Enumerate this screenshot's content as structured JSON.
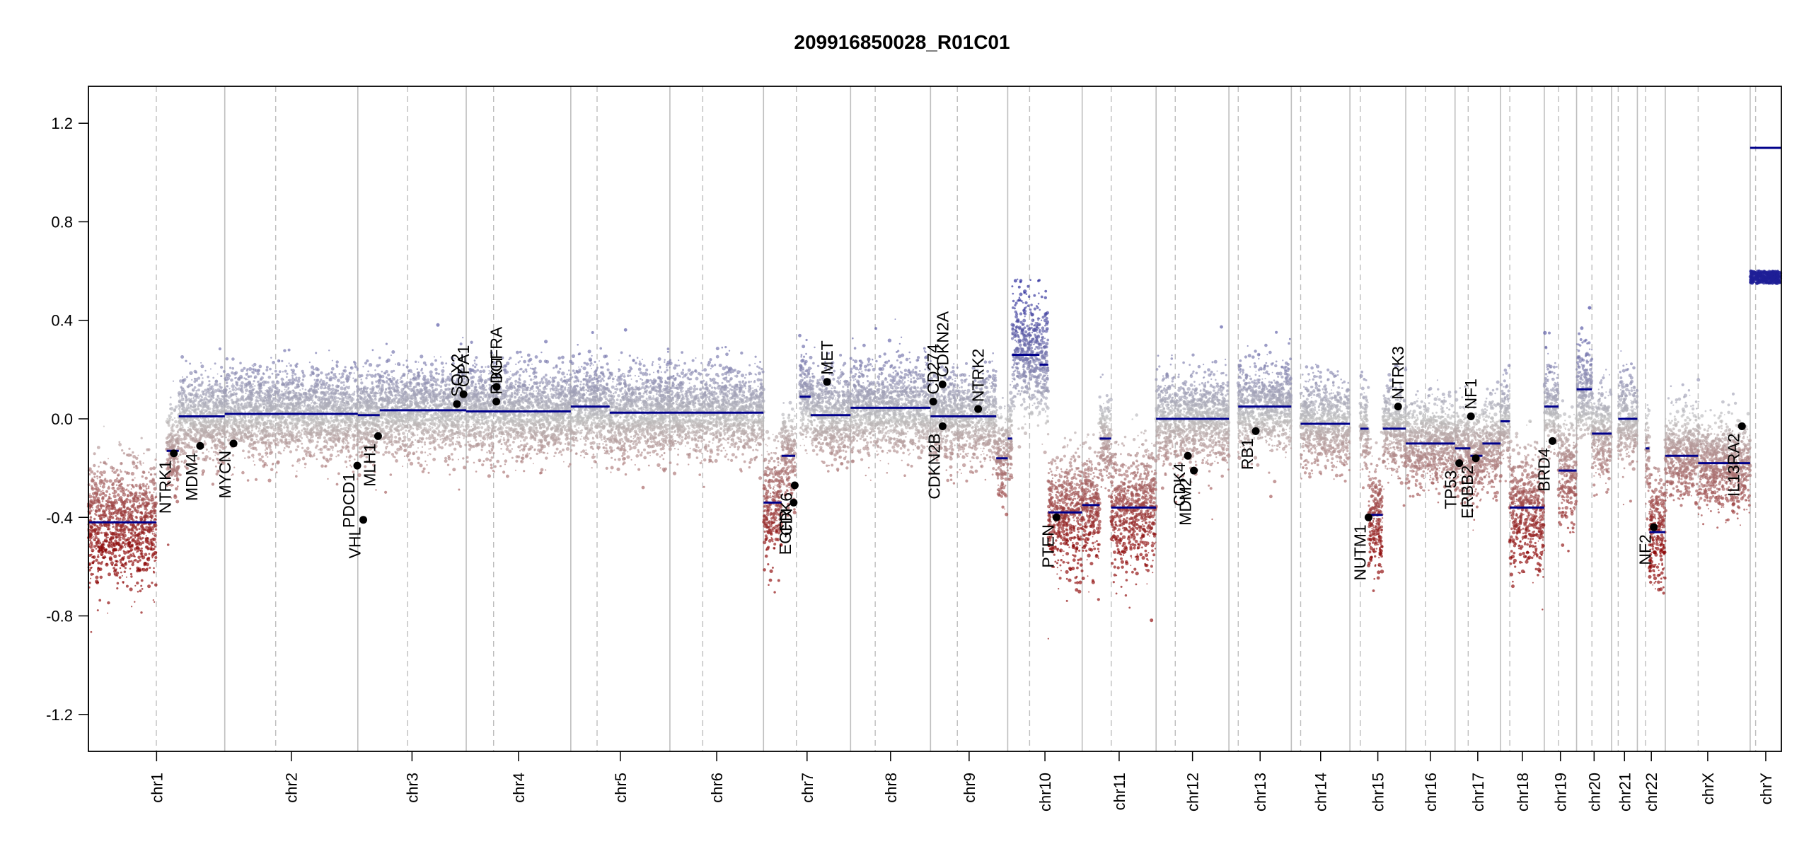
{
  "chart_data": {
    "type": "scatter",
    "title": "209916850028_R01C01",
    "xlabel": "",
    "ylabel": "",
    "ylim": [
      -1.35,
      1.35
    ],
    "yticks": [
      -1.2,
      -0.8,
      -0.4,
      0.0,
      0.4,
      0.8,
      1.2
    ],
    "ytick_labels": [
      "-1.2",
      "-0.8",
      "-0.4",
      "0.0",
      "0.4",
      "0.8",
      "1.2"
    ],
    "xaxis_unit": "Mb (cumulative genome position)",
    "chromosomes": [
      {
        "name": "chr1",
        "length": 249,
        "centromere": 124
      },
      {
        "name": "chr2",
        "length": 243,
        "centromere": 93
      },
      {
        "name": "chr3",
        "length": 198,
        "centromere": 91
      },
      {
        "name": "chr4",
        "length": 191,
        "centromere": 50
      },
      {
        "name": "chr5",
        "length": 181,
        "centromere": 48
      },
      {
        "name": "chr6",
        "length": 171,
        "centromere": 60
      },
      {
        "name": "chr7",
        "length": 159,
        "centromere": 60
      },
      {
        "name": "chr8",
        "length": 146,
        "centromere": 45
      },
      {
        "name": "chr9",
        "length": 141,
        "centromere": 49
      },
      {
        "name": "chr10",
        "length": 136,
        "centromere": 40
      },
      {
        "name": "chr11",
        "length": 135,
        "centromere": 53
      },
      {
        "name": "chr12",
        "length": 133,
        "centromere": 35
      },
      {
        "name": "chr13",
        "length": 114,
        "centromere": 17
      },
      {
        "name": "chr14",
        "length": 107,
        "centromere": 17
      },
      {
        "name": "chr15",
        "length": 102,
        "centromere": 19
      },
      {
        "name": "chr16",
        "length": 90,
        "centromere": 36
      },
      {
        "name": "chr17",
        "length": 83,
        "centromere": 24
      },
      {
        "name": "chr18",
        "length": 80,
        "centromere": 17
      },
      {
        "name": "chr19",
        "length": 59,
        "centromere": 26
      },
      {
        "name": "chr20",
        "length": 64,
        "centromere": 28
      },
      {
        "name": "chr21",
        "length": 47,
        "centromere": 12
      },
      {
        "name": "chr22",
        "length": 51,
        "centromere": 15
      },
      {
        "name": "chrX",
        "length": 155,
        "centromere": 60
      },
      {
        "name": "chrY",
        "length": 57,
        "centromere": 10
      }
    ],
    "segments": [
      {
        "chr": "chr1",
        "start": 0,
        "end": 124,
        "value": -0.42
      },
      {
        "chr": "chr1",
        "start": 143,
        "end": 165,
        "value": -0.13
      },
      {
        "chr": "chr1",
        "start": 165,
        "end": 249,
        "value": 0.01
      },
      {
        "chr": "chr2",
        "start": 0,
        "end": 243,
        "value": 0.02
      },
      {
        "chr": "chr3",
        "start": 0,
        "end": 40,
        "value": 0.015
      },
      {
        "chr": "chr3",
        "start": 40,
        "end": 198,
        "value": 0.035
      },
      {
        "chr": "chr4",
        "start": 0,
        "end": 191,
        "value": 0.03
      },
      {
        "chr": "chr5",
        "start": 0,
        "end": 71,
        "value": 0.05
      },
      {
        "chr": "chr5",
        "start": 71,
        "end": 181,
        "value": 0.025
      },
      {
        "chr": "chr6",
        "start": 0,
        "end": 171,
        "value": 0.025
      },
      {
        "chr": "chr7",
        "start": 0,
        "end": 33,
        "value": -0.34
      },
      {
        "chr": "chr7",
        "start": 33,
        "end": 58,
        "value": -0.15
      },
      {
        "chr": "chr7",
        "start": 66,
        "end": 86,
        "value": 0.09
      },
      {
        "chr": "chr7",
        "start": 86,
        "end": 159,
        "value": 0.015
      },
      {
        "chr": "chr8",
        "start": 0,
        "end": 146,
        "value": 0.045
      },
      {
        "chr": "chr9",
        "start": 0,
        "end": 120,
        "value": 0.01
      },
      {
        "chr": "chr9",
        "start": 120,
        "end": 141,
        "value": -0.16
      },
      {
        "chr": "chr10",
        "start": 0,
        "end": 8,
        "value": -0.08
      },
      {
        "chr": "chr10",
        "start": 8,
        "end": 58,
        "value": 0.26
      },
      {
        "chr": "chr10",
        "start": 58,
        "end": 74,
        "value": 0.22
      },
      {
        "chr": "chr10",
        "start": 74,
        "end": 136,
        "value": -0.38
      },
      {
        "chr": "chr11",
        "start": 0,
        "end": 32,
        "value": -0.35
      },
      {
        "chr": "chr11",
        "start": 32,
        "end": 53,
        "value": -0.08
      },
      {
        "chr": "chr11",
        "start": 53,
        "end": 135,
        "value": -0.36
      },
      {
        "chr": "chr12",
        "start": 0,
        "end": 133,
        "value": 0.0
      },
      {
        "chr": "chr13",
        "start": 17,
        "end": 114,
        "value": 0.05
      },
      {
        "chr": "chr14",
        "start": 17,
        "end": 107,
        "value": -0.02
      },
      {
        "chr": "chr15",
        "start": 19,
        "end": 34,
        "value": -0.04
      },
      {
        "chr": "chr15",
        "start": 34,
        "end": 60,
        "value": -0.39
      },
      {
        "chr": "chr15",
        "start": 60,
        "end": 102,
        "value": -0.04
      },
      {
        "chr": "chr16",
        "start": 0,
        "end": 90,
        "value": -0.1
      },
      {
        "chr": "chr17",
        "start": 0,
        "end": 28,
        "value": -0.12
      },
      {
        "chr": "chr17",
        "start": 28,
        "end": 50,
        "value": -0.15
      },
      {
        "chr": "chr17",
        "start": 50,
        "end": 83,
        "value": -0.1
      },
      {
        "chr": "chr18",
        "start": 0,
        "end": 17,
        "value": -0.01
      },
      {
        "chr": "chr18",
        "start": 17,
        "end": 80,
        "value": -0.36
      },
      {
        "chr": "chr19",
        "start": 0,
        "end": 26,
        "value": 0.05
      },
      {
        "chr": "chr19",
        "start": 26,
        "end": 59,
        "value": -0.21
      },
      {
        "chr": "chr20",
        "start": 0,
        "end": 28,
        "value": 0.12
      },
      {
        "chr": "chr20",
        "start": 28,
        "end": 64,
        "value": -0.06
      },
      {
        "chr": "chr21",
        "start": 12,
        "end": 47,
        "value": 0.0
      },
      {
        "chr": "chr22",
        "start": 15,
        "end": 22,
        "value": -0.12
      },
      {
        "chr": "chr22",
        "start": 22,
        "end": 51,
        "value": -0.46
      },
      {
        "chr": "chrX",
        "start": 0,
        "end": 60,
        "value": -0.15
      },
      {
        "chr": "chrX",
        "start": 60,
        "end": 155,
        "value": -0.18
      },
      {
        "chr": "chrY",
        "start": 0,
        "end": 57,
        "value": 1.1
      }
    ],
    "genes": [
      {
        "name": "NTRK1",
        "chr": "chr1",
        "pos": 156,
        "value": -0.14
      },
      {
        "name": "MDM4",
        "chr": "chr1",
        "pos": 204,
        "value": -0.11
      },
      {
        "name": "MYCN",
        "chr": "chr2",
        "pos": 16,
        "value": -0.1
      },
      {
        "name": "VHL",
        "chr": "chr3",
        "pos": 10,
        "value": -0.41
      },
      {
        "name": "PDCD1",
        "chr": "chr2",
        "pos": 242,
        "value": -0.19
      },
      {
        "name": "MLH1",
        "chr": "chr3",
        "pos": 37,
        "value": -0.07
      },
      {
        "name": "SOX2",
        "chr": "chr3",
        "pos": 181,
        "value": 0.06
      },
      {
        "name": "OPA1",
        "chr": "chr3",
        "pos": 193,
        "value": 0.1
      },
      {
        "name": "PDGFRA",
        "chr": "chr4",
        "pos": 55,
        "value": 0.07
      },
      {
        "name": "KIT",
        "chr": "chr4",
        "pos": 55.5,
        "value": 0.13
      },
      {
        "name": "EGFR",
        "chr": "chr7",
        "pos": 55,
        "value": -0.34
      },
      {
        "name": "CDK6",
        "chr": "chr7",
        "pos": 57,
        "value": -0.27
      },
      {
        "name": "MET",
        "chr": "chr7",
        "pos": 116,
        "value": 0.15
      },
      {
        "name": "CD274",
        "chr": "chr9",
        "pos": 5,
        "value": 0.07
      },
      {
        "name": "CDKN2A",
        "chr": "chr9",
        "pos": 21.9,
        "value": 0.14
      },
      {
        "name": "CDKN2B",
        "chr": "chr9",
        "pos": 22.1,
        "value": -0.03
      },
      {
        "name": "NTRK2",
        "chr": "chr9",
        "pos": 87,
        "value": 0.04
      },
      {
        "name": "PTEN",
        "chr": "chr10",
        "pos": 89,
        "value": -0.4
      },
      {
        "name": "CDK4",
        "chr": "chr12",
        "pos": 58,
        "value": -0.15
      },
      {
        "name": "MDM2",
        "chr": "chr12",
        "pos": 69,
        "value": -0.21
      },
      {
        "name": "RB1",
        "chr": "chr13",
        "pos": 49,
        "value": -0.05
      },
      {
        "name": "NUTM1",
        "chr": "chr15",
        "pos": 34,
        "value": -0.4
      },
      {
        "name": "NTRK3",
        "chr": "chr15",
        "pos": 88,
        "value": 0.05
      },
      {
        "name": "TP53",
        "chr": "chr17",
        "pos": 7.6,
        "value": -0.18
      },
      {
        "name": "NF1",
        "chr": "chr17",
        "pos": 29,
        "value": 0.01
      },
      {
        "name": "ERBB2",
        "chr": "chr17",
        "pos": 37.9,
        "value": -0.16
      },
      {
        "name": "BRD4",
        "chr": "chr19",
        "pos": 15,
        "value": -0.09
      },
      {
        "name": "NF2",
        "chr": "chr22",
        "pos": 30,
        "value": -0.44
      },
      {
        "name": "IL13RA2",
        "chr": "chrX",
        "pos": 140,
        "value": -0.03
      }
    ]
  },
  "colors": {
    "segment": "#00008B",
    "gain": "#000080",
    "loss": "#8B0000",
    "neutral": "#BEBEBE",
    "gene_point": "#000000",
    "chr_boundary": "#BEBEBE",
    "centromere": "#BEBEBE"
  }
}
